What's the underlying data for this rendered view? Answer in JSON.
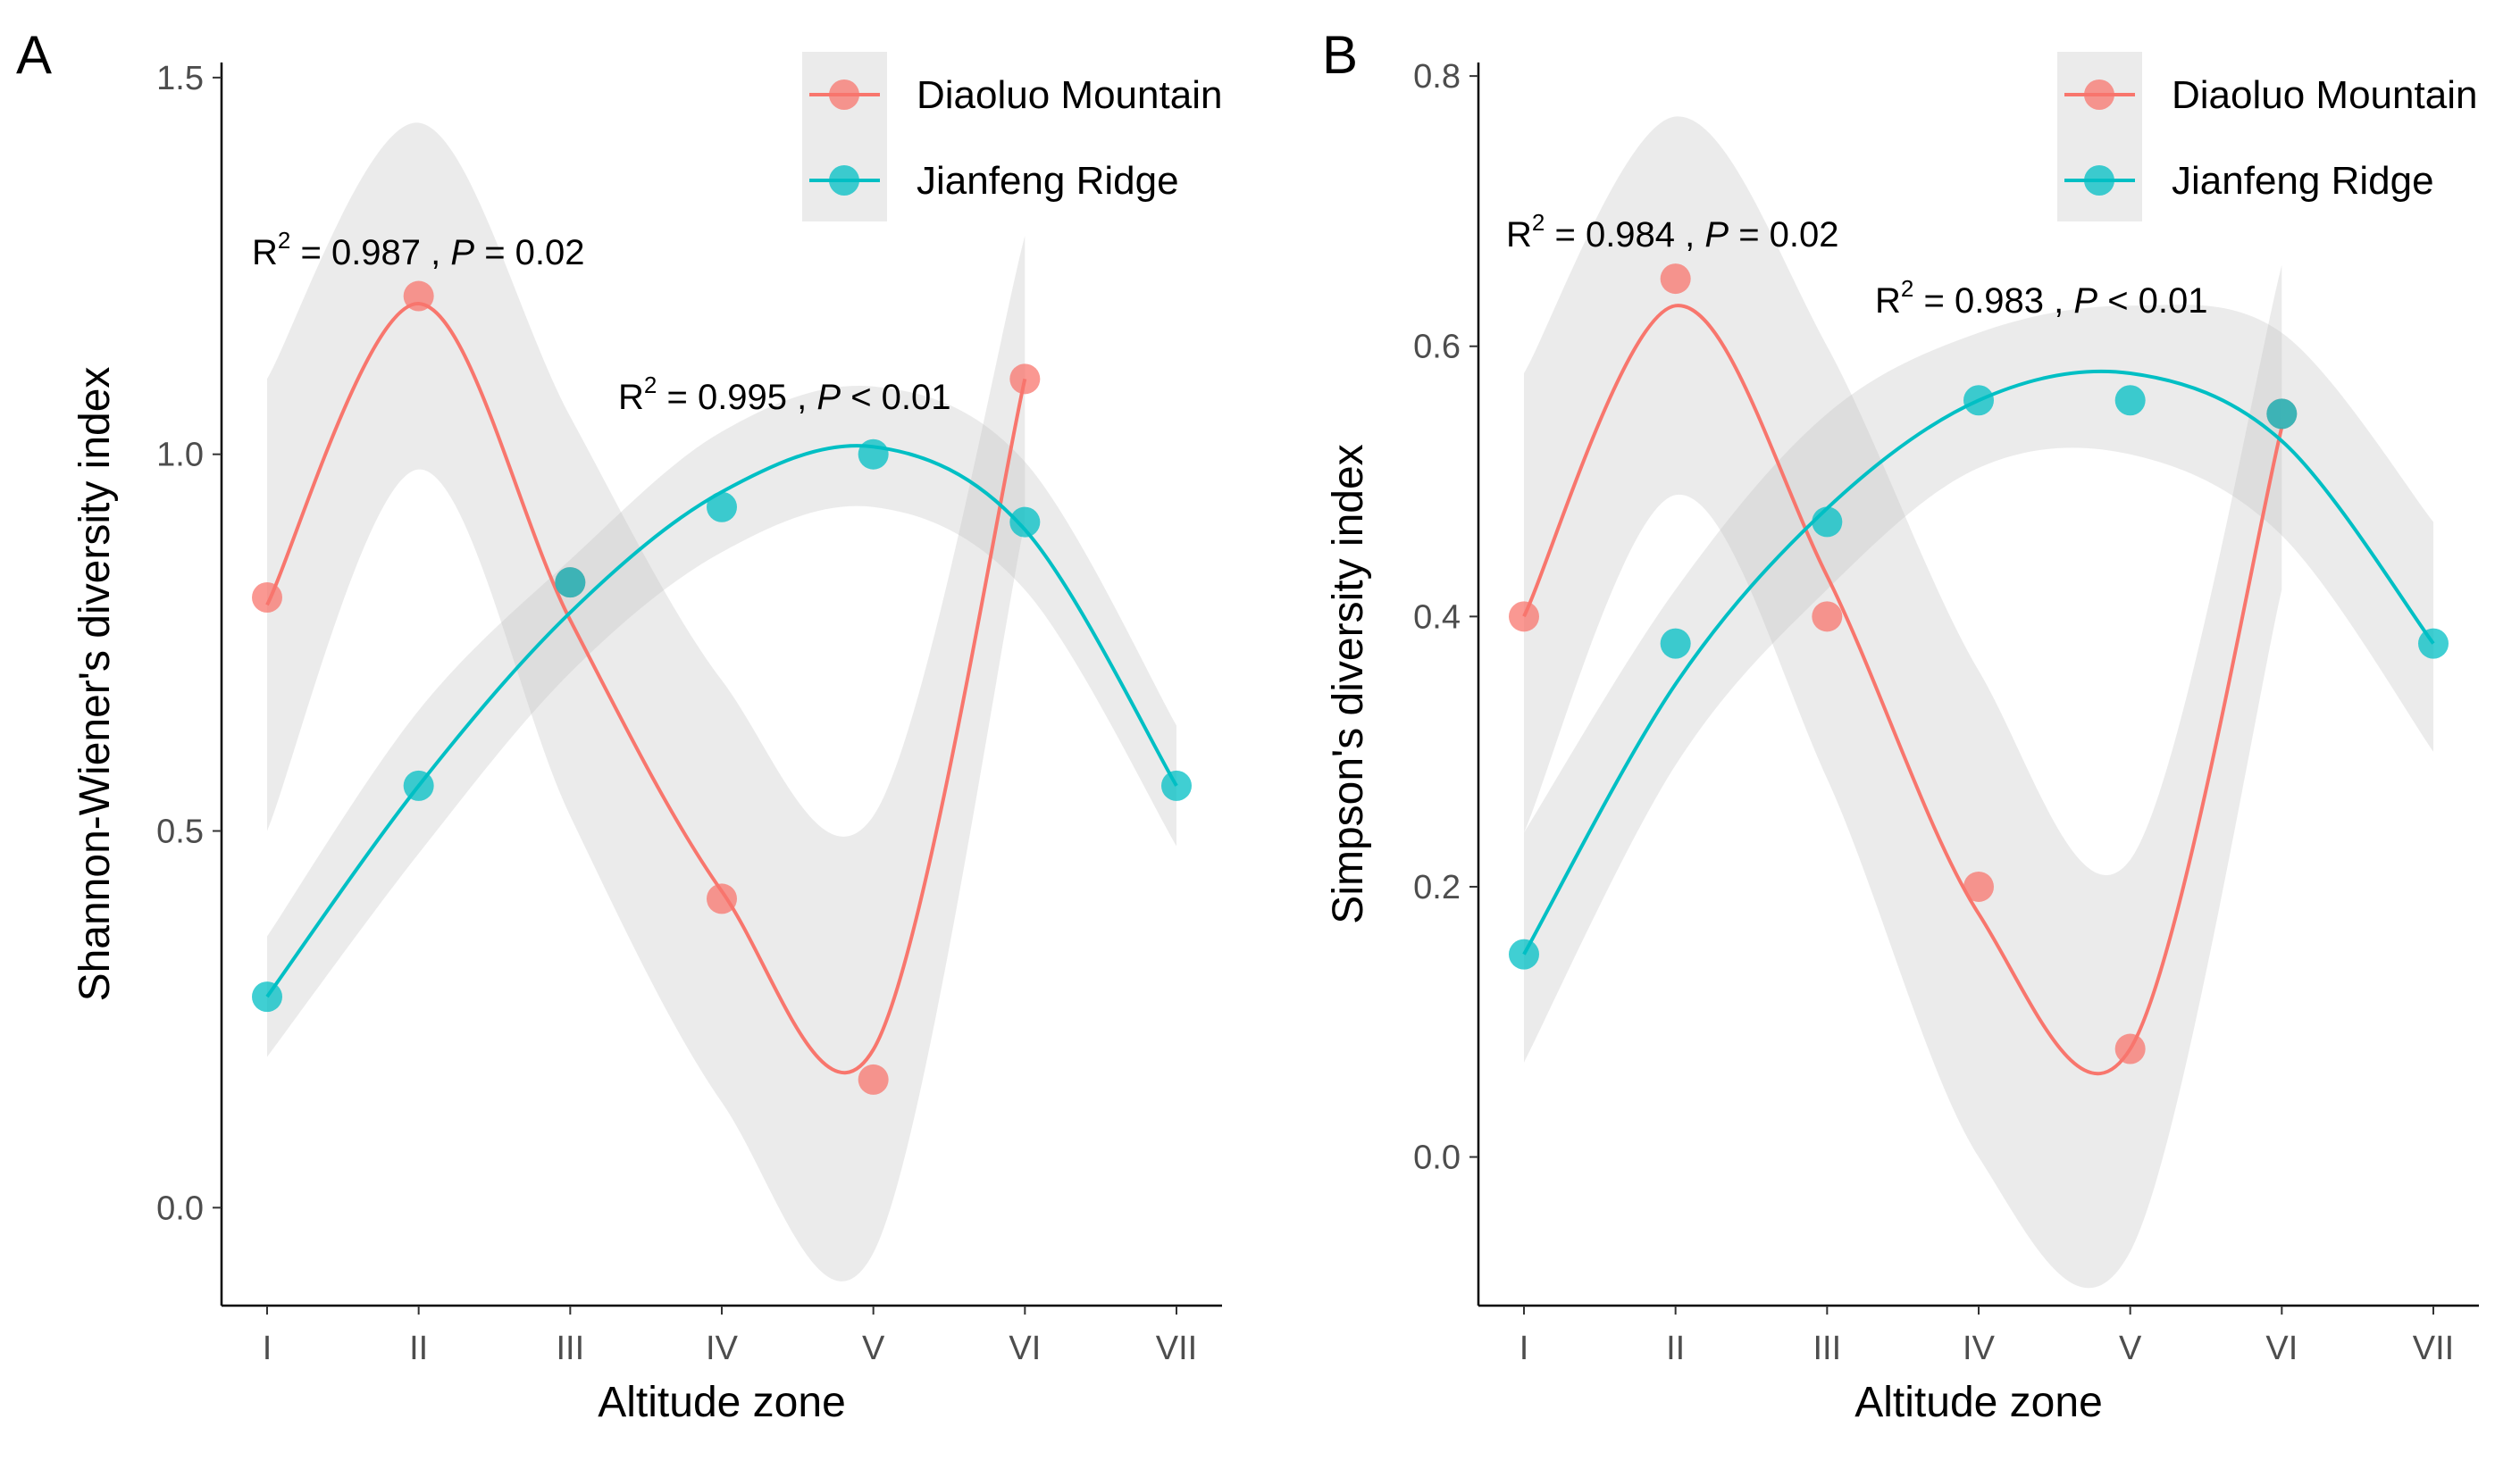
{
  "chart_data": [
    {
      "type": "scatter",
      "panel_label": "A",
      "title": "",
      "xlabel": "Altitude zone",
      "ylabel": "Shannon-Wiener's diversity index",
      "categories": [
        "I",
        "II",
        "III",
        "IV",
        "V",
        "VI",
        "VII"
      ],
      "ylim": [
        -0.13,
        1.52
      ],
      "yticks": [
        "0.0",
        "0.5",
        "1.0",
        "1.5"
      ],
      "ytick_values": [
        0.0,
        0.5,
        1.0,
        1.5
      ],
      "legend": [
        "Diaoluo Mountain",
        "Jianfeng Ridge"
      ],
      "legend_position": "top-right",
      "series": [
        {
          "name": "Diaoluo Mountain",
          "color": "#F8766D",
          "x": [
            1,
            2,
            3,
            4,
            5,
            6
          ],
          "values": [
            0.81,
            1.21,
            0.83,
            0.41,
            0.17,
            1.1
          ],
          "fit_y": [
            0.8,
            1.2,
            0.78,
            0.42,
            0.21,
            1.1
          ],
          "ci_upper": [
            1.1,
            1.44,
            1.05,
            0.7,
            0.52,
            1.29
          ],
          "ci_lower": [
            0.5,
            0.98,
            0.52,
            0.14,
            -0.06,
            0.91
          ],
          "annotation": {
            "r2_label": "R",
            "r2_exp": "2",
            "r2_value": " = 0.987 , ",
            "p_label": "P",
            "p_value": " = 0.02"
          }
        },
        {
          "name": "Jianfeng Ridge",
          "color": "#00BFC4",
          "x": [
            1,
            2,
            3,
            4,
            5,
            6,
            7
          ],
          "values": [
            0.28,
            0.56,
            0.83,
            0.93,
            1.0,
            0.91,
            0.56
          ],
          "fit_y": [
            0.28,
            0.56,
            0.79,
            0.95,
            1.01,
            0.9,
            0.56
          ],
          "ci_upper": [
            0.36,
            0.66,
            0.86,
            1.03,
            1.09,
            0.99,
            0.64
          ],
          "ci_lower": [
            0.2,
            0.47,
            0.71,
            0.87,
            0.93,
            0.82,
            0.48
          ],
          "annotation": {
            "r2_label": "R",
            "r2_exp": "2",
            "r2_value": " = 0.995 , ",
            "p_label": "P",
            "p_value": " < 0.01"
          }
        }
      ]
    },
    {
      "type": "scatter",
      "panel_label": "B",
      "title": "",
      "xlabel": "Altitude zone",
      "ylabel": "Simpson's diversity index",
      "categories": [
        "I",
        "II",
        "III",
        "IV",
        "V",
        "VI",
        "VII"
      ],
      "ylim": [
        -0.11,
        0.81
      ],
      "yticks": [
        "0.0",
        "0.2",
        "0.4",
        "0.6",
        "0.8"
      ],
      "ytick_values": [
        0.0,
        0.2,
        0.4,
        0.6,
        0.8
      ],
      "legend": [
        "Diaoluo Mountain",
        "Jianfeng Ridge"
      ],
      "legend_position": "top-right",
      "series": [
        {
          "name": "Diaoluo Mountain",
          "color": "#F8766D",
          "x": [
            1,
            2,
            3,
            4,
            5,
            6
          ],
          "values": [
            0.4,
            0.65,
            0.4,
            0.2,
            0.08,
            0.55
          ],
          "fit_y": [
            0.4,
            0.63,
            0.43,
            0.18,
            0.08,
            0.54
          ],
          "ci_upper": [
            0.58,
            0.77,
            0.6,
            0.36,
            0.22,
            0.66
          ],
          "ci_lower": [
            0.24,
            0.49,
            0.28,
            0.0,
            -0.07,
            0.42
          ],
          "annotation": {
            "r2_label": "R",
            "r2_exp": "2",
            "r2_value": " = 0.984 , ",
            "p_label": "P",
            "p_value": " = 0.02"
          }
        },
        {
          "name": "Jianfeng Ridge",
          "color": "#00BFC4",
          "x": [
            1,
            2,
            3,
            4,
            5,
            6,
            7
          ],
          "values": [
            0.15,
            0.38,
            0.47,
            0.56,
            0.56,
            0.55,
            0.38
          ],
          "fit_y": [
            0.15,
            0.35,
            0.48,
            0.56,
            0.58,
            0.53,
            0.38
          ],
          "ci_upper": [
            0.24,
            0.42,
            0.55,
            0.61,
            0.63,
            0.61,
            0.47
          ],
          "ci_lower": [
            0.07,
            0.29,
            0.42,
            0.51,
            0.52,
            0.46,
            0.3
          ],
          "annotation": {
            "r2_label": "R",
            "r2_exp": "2",
            "r2_value": " = 0.983 , ",
            "p_label": "P",
            "p_value": " < 0.01"
          }
        }
      ]
    }
  ]
}
